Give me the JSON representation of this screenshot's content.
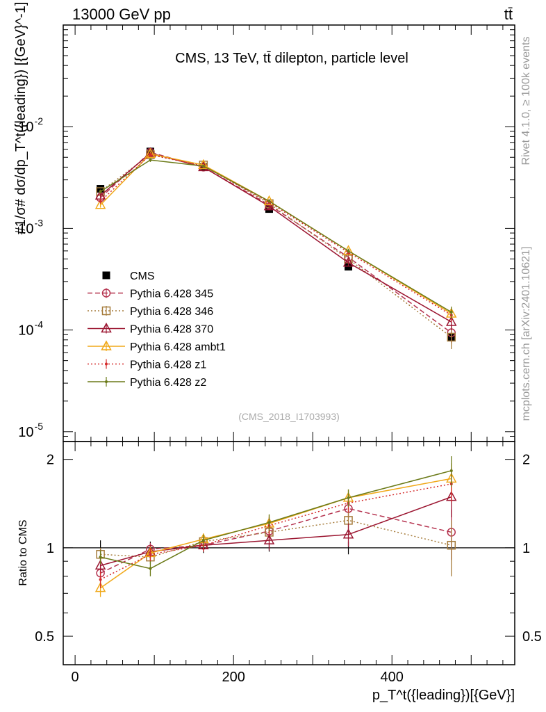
{
  "header": {
    "left": "13000 GeV pp",
    "right": "tt̄"
  },
  "side_labels": {
    "rivet": "Rivet 4.1.0, ≥ 100k events",
    "mcplots": "mcplots.cern.ch [arXiv:2401.10621]"
  },
  "colors": {
    "cms": "#000000",
    "p345": "#b5334f",
    "p346": "#a67c3c",
    "p370": "#9b1530",
    "ambt1": "#f0a818",
    "z1": "#d42a2a",
    "z2": "#6b7a18"
  },
  "chart_data": [
    {
      "type": "line",
      "title": "CMS, 13 TeV, tt̄ dilepton, particle level",
      "watermark": "(CMS_2018_I1703993)",
      "ylabel": "#1/σ# dσ/dp_T^t({leading}) [{GeV}^-1]",
      "yscale": "log",
      "ylim": [
        8e-06,
        0.1
      ],
      "xlim": [
        -15,
        555
      ],
      "ytick_labels": [
        "10^-5",
        "10^-4",
        "10^-3",
        "10^-2"
      ],
      "x": [
        32,
        95,
        162,
        245,
        345,
        475
      ],
      "series": [
        {
          "name": "CMS",
          "color_key": "cms",
          "marker": "square-filled",
          "line": "none",
          "values": [
            0.00245,
            0.0057,
            0.004,
            0.00155,
            0.00042,
            8.5e-05
          ],
          "errors": [
            0.00015,
            0.0003,
            0.00015,
            5e-05,
            2e-05,
            8e-06
          ]
        },
        {
          "name": "Pythia 6.428 345",
          "color_key": "p345",
          "marker": "circle-open",
          "line": "dashed",
          "values": [
            0.002,
            0.0056,
            0.004,
            0.0017,
            0.00052,
            9.4e-05
          ],
          "errors": [
            0.0001,
            0.0002,
            0.0001,
            6e-05,
            3e-05,
            2e-05
          ]
        },
        {
          "name": "Pythia 6.428 346",
          "color_key": "p346",
          "marker": "square-open",
          "line": "dotted",
          "values": [
            0.0023,
            0.0053,
            0.0042,
            0.00175,
            0.0005,
            8.5e-05
          ],
          "errors": [
            0.0001,
            0.0002,
            0.0001,
            6e-05,
            3e-05,
            2e-05
          ]
        },
        {
          "name": "Pythia 6.428 370",
          "color_key": "p370",
          "marker": "triangle-open",
          "line": "solid",
          "values": [
            0.0021,
            0.0055,
            0.004,
            0.00165,
            0.00046,
            0.00012
          ],
          "errors": [
            0.0001,
            0.0002,
            0.0001,
            6e-05,
            3e-05,
            2e-05
          ]
        },
        {
          "name": "Pythia 6.428 ambt1",
          "color_key": "ambt1",
          "marker": "triangle-open",
          "line": "solid",
          "values": [
            0.0017,
            0.0054,
            0.0042,
            0.00185,
            0.0006,
            0.000145
          ],
          "errors": [
            0.0001,
            0.0002,
            0.0001,
            6e-05,
            3e-05,
            2e-05
          ]
        },
        {
          "name": "Pythia 6.428 z1",
          "color_key": "z1",
          "marker": "dot",
          "line": "dotted",
          "values": [
            0.00185,
            0.0053,
            0.0041,
            0.0018,
            0.00058,
            0.00014
          ],
          "errors": [
            0.0001,
            0.0002,
            0.0001,
            6e-05,
            3e-05,
            2e-05
          ]
        },
        {
          "name": "Pythia 6.428 z2",
          "color_key": "z2",
          "marker": "dot",
          "line": "solid",
          "values": [
            0.0023,
            0.0047,
            0.0041,
            0.00185,
            0.0006,
            0.00015
          ],
          "errors": [
            0.0001,
            0.0002,
            0.0001,
            6e-05,
            3e-05,
            2e-05
          ]
        }
      ]
    },
    {
      "type": "line",
      "ylabel": "Ratio to CMS",
      "xlabel": "p_T^t({leading})[{GeV}]",
      "ylim": [
        0.4,
        2.3
      ],
      "xlim": [
        -15,
        555
      ],
      "yticks": [
        0.5,
        1,
        2
      ],
      "ytick_labels": [
        "0.5",
        "1",
        "2"
      ],
      "xticks": [
        0,
        200,
        400
      ],
      "xtick_labels": [
        "0",
        "200",
        "400"
      ],
      "reference_line": 1,
      "band_errors": [
        0.06,
        0.05,
        0.04,
        0.03,
        0.05,
        0.09
      ],
      "x": [
        32,
        95,
        162,
        245,
        345,
        475
      ],
      "series": [
        {
          "name": "Pythia 6.428 345",
          "color_key": "p345",
          "marker": "circle-open",
          "line": "dashed",
          "values": [
            0.82,
            0.99,
            1.02,
            1.14,
            1.36,
            1.13
          ],
          "errors": [
            0.05,
            0.05,
            0.05,
            0.08,
            0.1,
            0.22
          ]
        },
        {
          "name": "Pythia 6.428 346",
          "color_key": "p346",
          "marker": "square-open",
          "line": "dotted",
          "values": [
            0.95,
            0.93,
            1.05,
            1.13,
            1.24,
            1.02
          ],
          "errors": [
            0.05,
            0.05,
            0.05,
            0.08,
            0.1,
            0.22
          ]
        },
        {
          "name": "Pythia 6.428 370",
          "color_key": "p370",
          "marker": "triangle-open",
          "line": "solid",
          "values": [
            0.87,
            0.97,
            1.02,
            1.06,
            1.11,
            1.49
          ],
          "errors": [
            0.05,
            0.05,
            0.05,
            0.08,
            0.1,
            0.22
          ]
        },
        {
          "name": "Pythia 6.428 ambt1",
          "color_key": "ambt1",
          "marker": "triangle-open",
          "line": "solid",
          "values": [
            0.73,
            0.96,
            1.07,
            1.21,
            1.48,
            1.72
          ],
          "errors": [
            0.05,
            0.05,
            0.05,
            0.08,
            0.1,
            0.22
          ]
        },
        {
          "name": "Pythia 6.428 z1",
          "color_key": "z1",
          "marker": "dot",
          "line": "dotted",
          "values": [
            0.78,
            0.95,
            1.02,
            1.19,
            1.42,
            1.65
          ],
          "errors": [
            0.05,
            0.05,
            0.05,
            0.08,
            0.1,
            0.22
          ]
        },
        {
          "name": "Pythia 6.428 z2",
          "color_key": "z2",
          "marker": "dot",
          "line": "solid",
          "values": [
            0.93,
            0.85,
            1.06,
            1.22,
            1.48,
            1.83
          ],
          "errors": [
            0.05,
            0.05,
            0.05,
            0.08,
            0.1,
            0.22
          ]
        }
      ]
    }
  ]
}
